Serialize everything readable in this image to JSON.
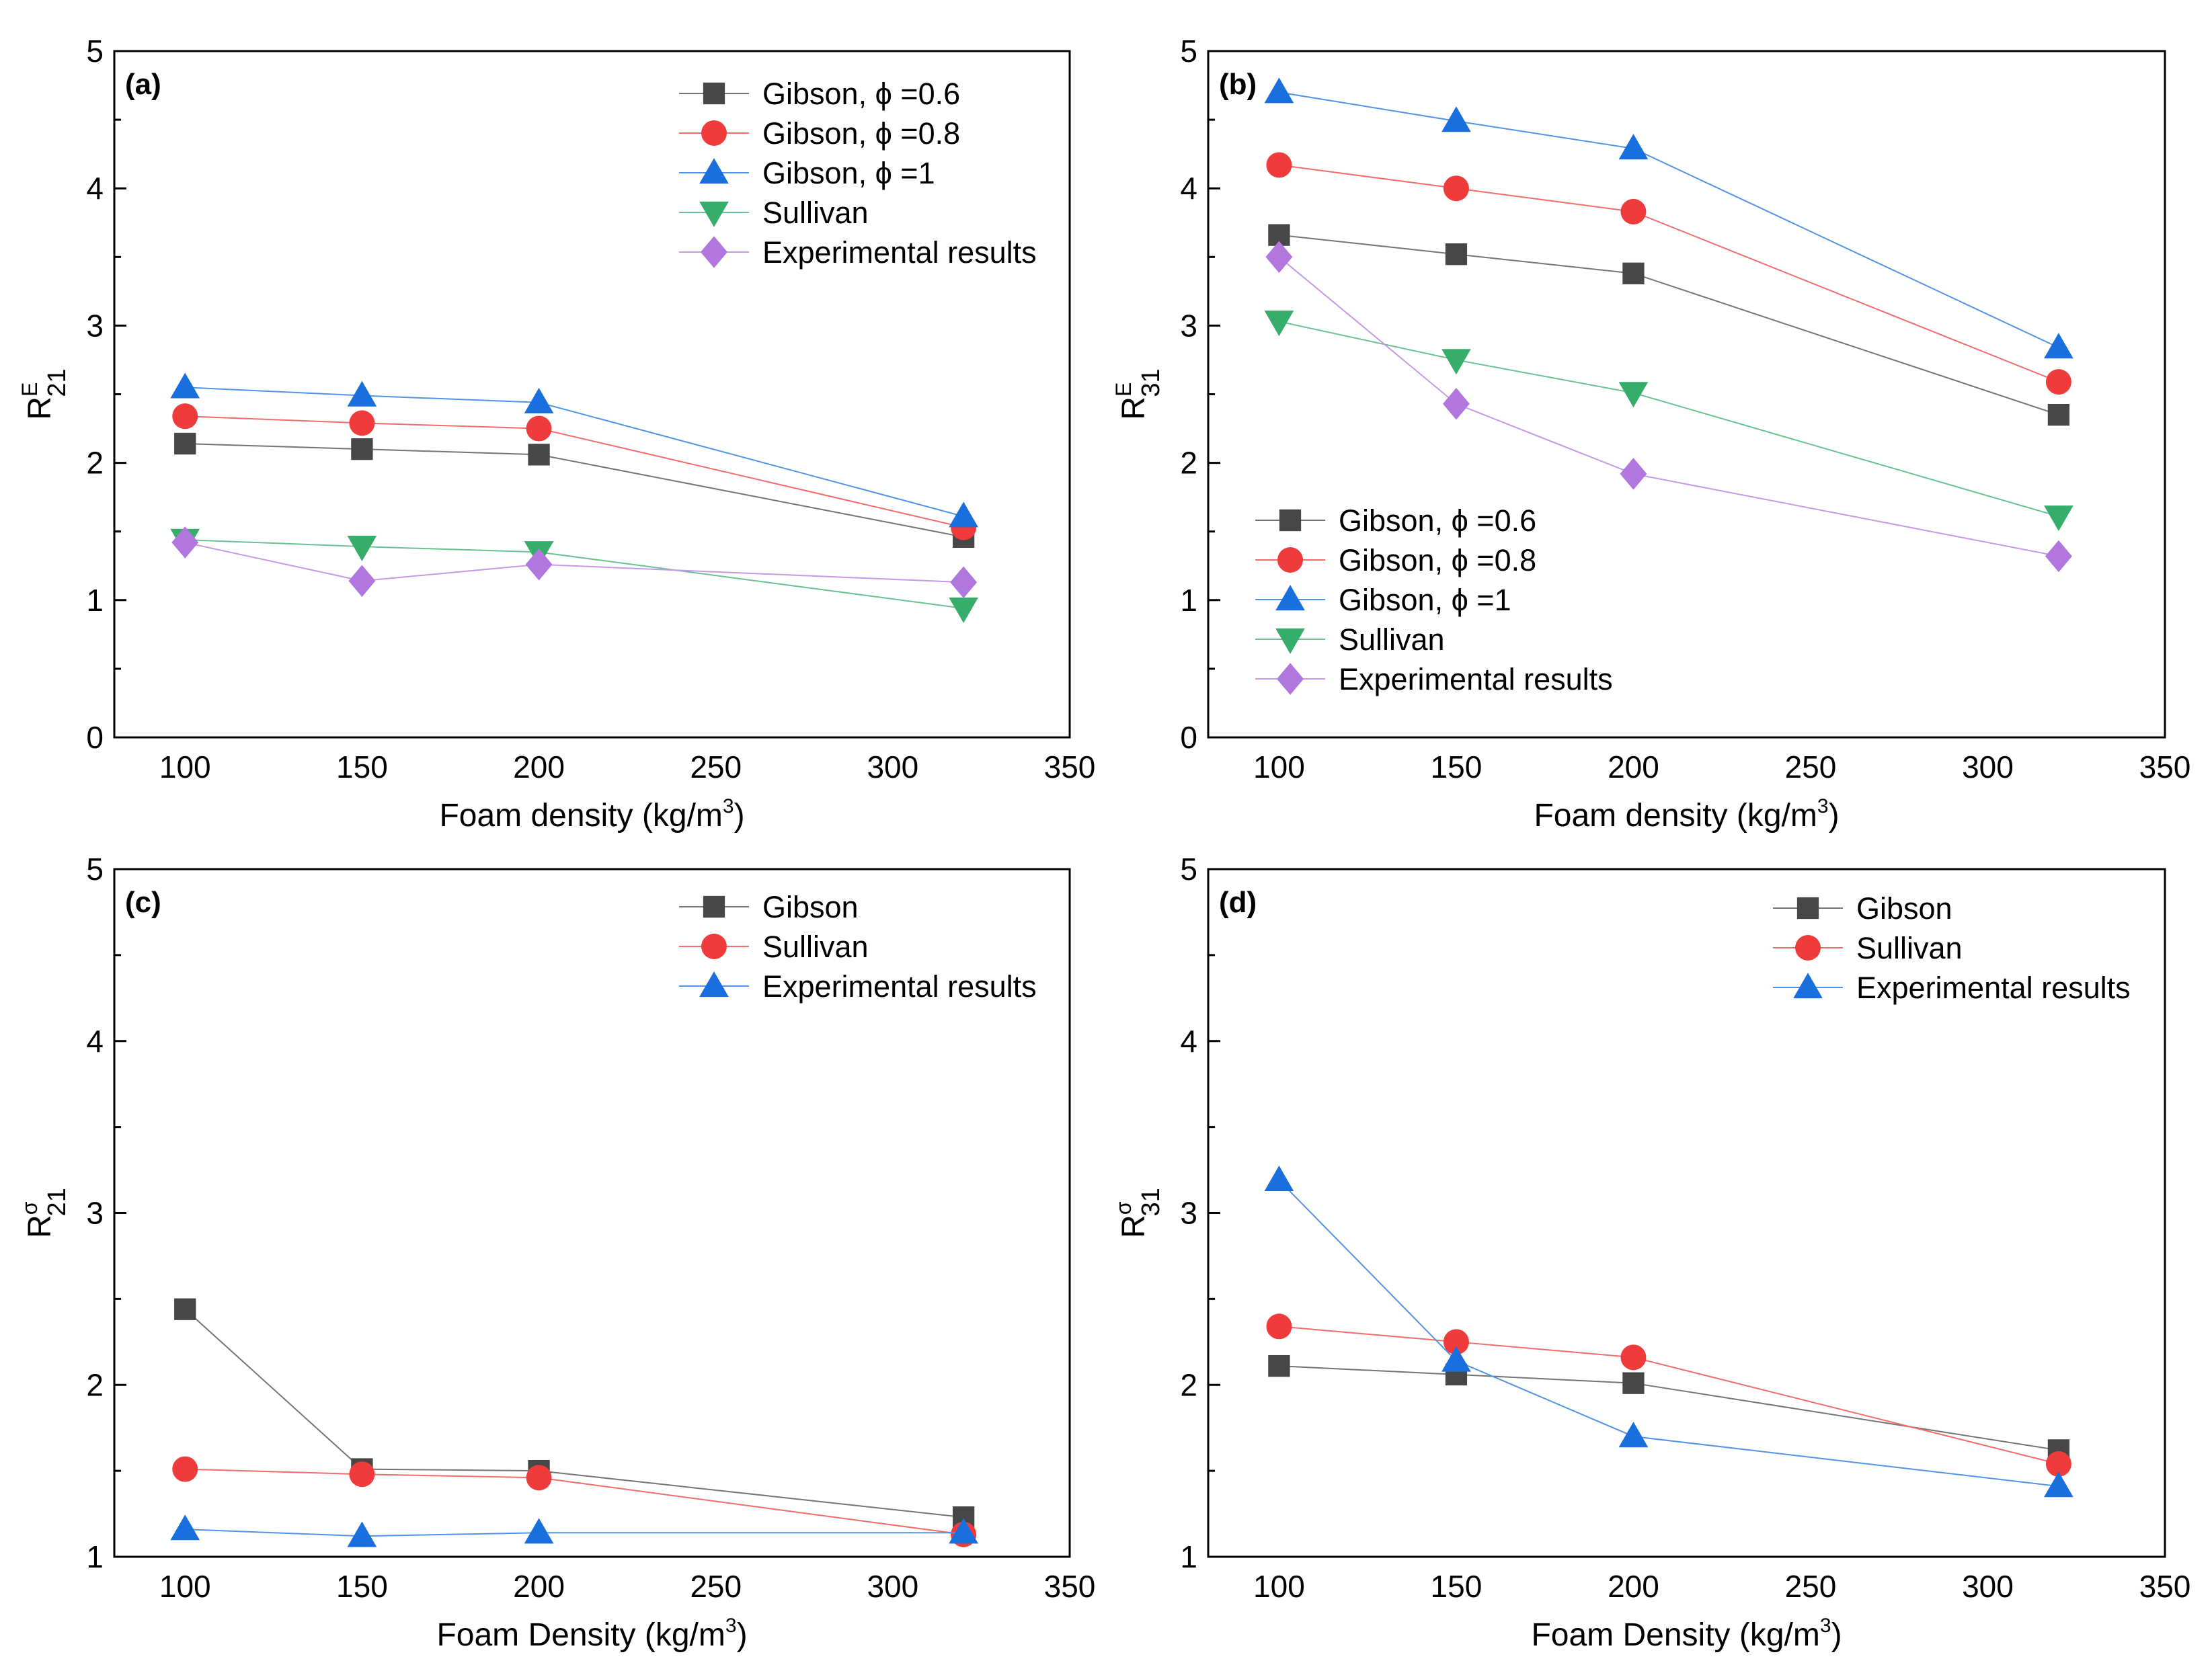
{
  "colors": {
    "s0": "#474747",
    "s1": "#ef3b3b",
    "s2": "#1a6fdf",
    "s3": "#37ad6b",
    "s4": "#b177de"
  },
  "chart_data": [
    {
      "type": "line",
      "panel_label": "(a)",
      "xlabel": "Foam density (kg/m",
      "xlabel_sup": "3",
      "xlabel_end": ")",
      "ylabel": "R",
      "ylabel_sup": "E",
      "ylabel_sub": "21",
      "xlim": [
        80,
        350
      ],
      "ylim": [
        0,
        5
      ],
      "xticks": [
        100,
        150,
        200,
        250,
        300,
        350
      ],
      "yticks": [
        0,
        1,
        2,
        3,
        4,
        5
      ],
      "legend_position": "top-right",
      "x": [
        100,
        150,
        200,
        320
      ],
      "series": [
        {
          "name": "Gibson, ϕ =0.6",
          "marker": "square",
          "color": "s0",
          "values": [
            2.14,
            2.1,
            2.06,
            1.46
          ]
        },
        {
          "name": "Gibson, ϕ =0.8",
          "marker": "circle",
          "color": "s1",
          "values": [
            2.34,
            2.29,
            2.25,
            1.53
          ]
        },
        {
          "name": "Gibson, ϕ =1",
          "marker": "triangle-up",
          "color": "s2",
          "values": [
            2.55,
            2.49,
            2.44,
            1.61
          ]
        },
        {
          "name": "Sullivan",
          "marker": "triangle-down",
          "color": "s3",
          "values": [
            1.44,
            1.39,
            1.35,
            0.94
          ]
        },
        {
          "name": "Experimental results",
          "marker": "diamond",
          "color": "s4",
          "values": [
            1.42,
            1.14,
            1.26,
            1.13
          ]
        }
      ]
    },
    {
      "type": "line",
      "panel_label": "(b)",
      "xlabel": "Foam density (kg/m",
      "xlabel_sup": "3",
      "xlabel_end": ")",
      "ylabel": "R",
      "ylabel_sup": "E",
      "ylabel_sub": "31",
      "xlim": [
        80,
        350
      ],
      "ylim": [
        0,
        5
      ],
      "xticks": [
        100,
        150,
        200,
        250,
        300,
        350
      ],
      "yticks": [
        0,
        1,
        2,
        3,
        4,
        5
      ],
      "legend_position": "bottom-left",
      "x": [
        100,
        150,
        200,
        320
      ],
      "series": [
        {
          "name": "Gibson, ϕ =0.6",
          "marker": "square",
          "color": "s0",
          "values": [
            3.66,
            3.52,
            3.38,
            2.35
          ]
        },
        {
          "name": "Gibson, ϕ =0.8",
          "marker": "circle",
          "color": "s1",
          "values": [
            4.17,
            4.0,
            3.83,
            2.59
          ]
        },
        {
          "name": "Gibson, ϕ =1",
          "marker": "triangle-up",
          "color": "s2",
          "values": [
            4.7,
            4.49,
            4.29,
            2.84
          ]
        },
        {
          "name": "Sullivan",
          "marker": "triangle-down",
          "color": "s3",
          "values": [
            3.03,
            2.75,
            2.51,
            1.61
          ]
        },
        {
          "name": "Experimental results",
          "marker": "diamond",
          "color": "s4",
          "values": [
            3.5,
            2.43,
            1.92,
            1.32
          ]
        }
      ]
    },
    {
      "type": "line",
      "panel_label": "(c)",
      "xlabel": "Foam Density (kg/m",
      "xlabel_sup": "3",
      "xlabel_end": ")",
      "ylabel": "R",
      "ylabel_sup": "σ",
      "ylabel_sub": "21",
      "xlim": [
        80,
        350
      ],
      "ylim": [
        1,
        5
      ],
      "xticks": [
        100,
        150,
        200,
        250,
        300,
        350
      ],
      "yticks": [
        1,
        2,
        3,
        4,
        5
      ],
      "legend_position": "top-right",
      "x": [
        100,
        150,
        200,
        320
      ],
      "series": [
        {
          "name": "Gibson",
          "marker": "square",
          "color": "s0",
          "values": [
            2.44,
            1.51,
            1.5,
            1.23
          ]
        },
        {
          "name": "Sullivan",
          "marker": "circle",
          "color": "s1",
          "values": [
            1.51,
            1.48,
            1.46,
            1.13
          ]
        },
        {
          "name": "Experimental results",
          "marker": "triangle-up",
          "color": "s2",
          "values": [
            1.16,
            1.12,
            1.14,
            1.14
          ]
        }
      ]
    },
    {
      "type": "line",
      "panel_label": "(d)",
      "xlabel": "Foam Density (kg/m",
      "xlabel_sup": "3",
      "xlabel_end": ")",
      "ylabel": "R",
      "ylabel_sup": "σ",
      "ylabel_sub": "31",
      "xlim": [
        80,
        350
      ],
      "ylim": [
        1,
        5
      ],
      "xticks": [
        100,
        150,
        200,
        250,
        300,
        350
      ],
      "yticks": [
        1,
        2,
        3,
        4,
        5
      ],
      "legend_position": "top-right",
      "x": [
        100,
        150,
        200,
        320
      ],
      "series": [
        {
          "name": "Gibson",
          "marker": "square",
          "color": "s0",
          "values": [
            2.11,
            2.06,
            2.01,
            1.62
          ]
        },
        {
          "name": "Sullivan",
          "marker": "circle",
          "color": "s1",
          "values": [
            2.34,
            2.25,
            2.16,
            1.54
          ]
        },
        {
          "name": "Experimental results",
          "marker": "triangle-up",
          "color": "s2",
          "values": [
            3.19,
            2.14,
            1.7,
            1.41
          ]
        }
      ]
    }
  ]
}
